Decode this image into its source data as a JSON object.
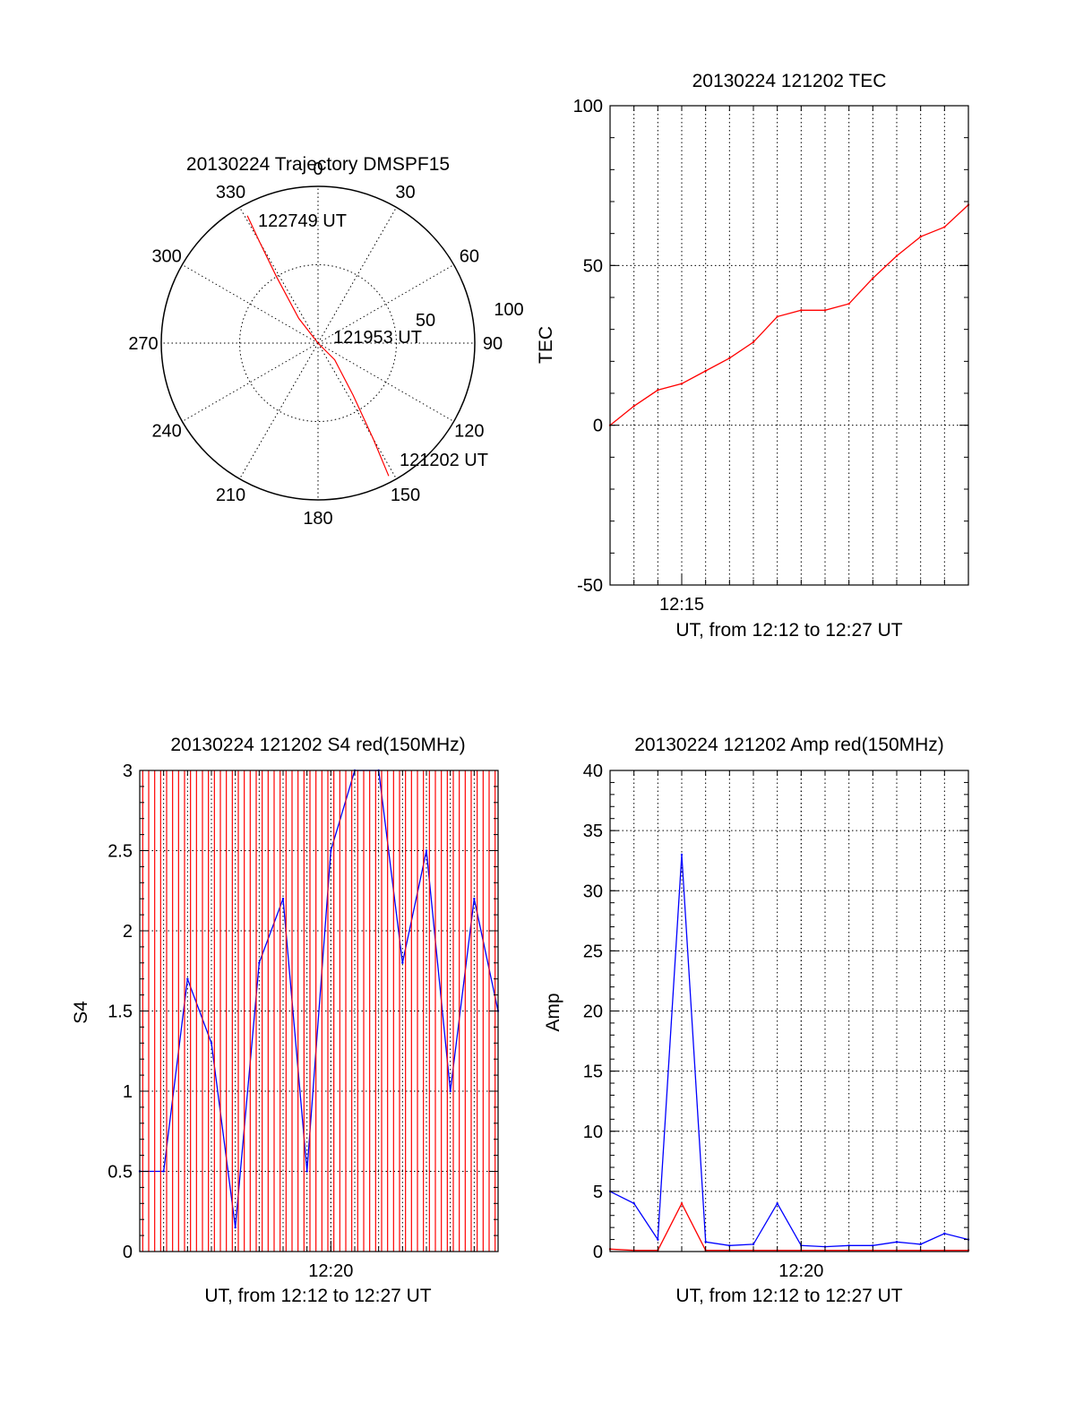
{
  "chart_data": [
    {
      "type": "polar",
      "title": "20130224 Trajectory DMSPF15",
      "angle_ticks": [
        "0",
        "30",
        "60",
        "90",
        "120",
        "150",
        "180",
        "210",
        "240",
        "270",
        "300",
        "330"
      ],
      "radial_ticks": [
        "50",
        "100"
      ],
      "rlim": [
        0,
        100
      ],
      "grid": true,
      "series": [
        {
          "color": "#ff0000",
          "points": [
            {
              "az": 152,
              "r": 96
            },
            {
              "az": 150,
              "r": 70
            },
            {
              "az": 146,
              "r": 40
            },
            {
              "az": 135,
              "r": 15
            },
            {
              "az": 0,
              "r": 0
            },
            {
              "az": 322,
              "r": 20
            },
            {
              "az": 328,
              "r": 50
            },
            {
              "az": 330,
              "r": 75
            },
            {
              "az": 331,
              "r": 93
            }
          ]
        }
      ],
      "annotations": [
        {
          "text": "122749 UT",
          "az": 331,
          "r": 93
        },
        {
          "text": "121953 UT",
          "az": 0,
          "r": 0
        },
        {
          "text": "121202 UT",
          "az": 152,
          "r": 96
        }
      ]
    },
    {
      "type": "line",
      "title": "20130224 121202 TEC",
      "xlabel": "UT, from 12:12 to 12:27 UT",
      "ylabel": "TEC",
      "xlim": [
        "12:12",
        "12:27"
      ],
      "xticks": [
        "12:15"
      ],
      "ylim": [
        -50,
        100
      ],
      "yticks": [
        -50,
        0,
        50,
        100
      ],
      "grid": true,
      "series": [
        {
          "color": "#ff0000",
          "x": [
            "12:12",
            "12:13",
            "12:14",
            "12:15",
            "12:16",
            "12:17",
            "12:18",
            "12:19",
            "12:20",
            "12:21",
            "12:22",
            "12:23",
            "12:24",
            "12:25",
            "12:26",
            "12:27"
          ],
          "values": [
            0,
            6,
            11,
            13,
            17,
            21,
            26,
            34,
            36,
            36,
            38,
            46,
            53,
            59,
            62,
            69
          ]
        }
      ]
    },
    {
      "type": "line",
      "title": "20130224 121202 S4 red(150MHz)",
      "xlabel": "UT, from 12:12 to 12:27 UT",
      "ylabel": "S4",
      "xlim": [
        "12:12",
        "12:27"
      ],
      "xticks": [
        "12:20"
      ],
      "ylim": [
        0,
        3
      ],
      "yticks": [
        0,
        0.5,
        1,
        1.5,
        2,
        2.5,
        3
      ],
      "grid": true,
      "series": [
        {
          "color": "#0000ff",
          "x": [
            "12:12",
            "12:13",
            "12:14",
            "12:15",
            "12:16",
            "12:17",
            "12:18",
            "12:19",
            "12:20",
            "12:21",
            "12:22",
            "12:23",
            "12:24",
            "12:25",
            "12:26",
            "12:27"
          ],
          "values": [
            0.5,
            0.5,
            1.7,
            1.3,
            0.15,
            1.8,
            2.2,
            0.5,
            2.5,
            3,
            3,
            1.8,
            2.5,
            1.0,
            2.2,
            1.5
          ]
        },
        {
          "color": "#ff0000",
          "x": [
            "12:12",
            "12:13",
            "12:14",
            "12:15",
            "12:16",
            "12:17",
            "12:18",
            "12:19",
            "12:20",
            "12:21",
            "12:22",
            "12:23",
            "12:24",
            "12:25",
            "12:26",
            "12:27"
          ],
          "values": [
            3,
            0,
            3,
            0,
            3,
            0,
            3,
            0,
            3,
            0,
            3,
            0,
            3,
            0,
            3,
            0
          ]
        }
      ]
    },
    {
      "type": "line",
      "title": "20130224 121202 Amp red(150MHz)",
      "xlabel": "UT, from 12:12 to 12:27 UT",
      "ylabel": "Amp",
      "xlim": [
        "12:12",
        "12:27"
      ],
      "xticks": [
        "12:20"
      ],
      "ylim": [
        0,
        40
      ],
      "yticks": [
        0,
        5,
        10,
        15,
        20,
        25,
        30,
        35,
        40
      ],
      "grid": true,
      "series": [
        {
          "color": "#0000ff",
          "x": [
            "12:12",
            "12:13",
            "12:14",
            "12:15",
            "12:16",
            "12:17",
            "12:18",
            "12:19",
            "12:20",
            "12:21",
            "12:22",
            "12:23",
            "12:24",
            "12:25",
            "12:26",
            "12:27"
          ],
          "values": [
            5,
            4,
            1,
            33,
            0.8,
            0.5,
            0.6,
            4,
            0.5,
            0.4,
            0.5,
            0.5,
            0.8,
            0.6,
            1.5,
            1
          ]
        },
        {
          "color": "#ff0000",
          "x": [
            "12:12",
            "12:13",
            "12:14",
            "12:15",
            "12:16",
            "12:17",
            "12:18",
            "12:19",
            "12:20",
            "12:21",
            "12:22",
            "12:23",
            "12:24",
            "12:25",
            "12:26",
            "12:27"
          ],
          "values": [
            0.2,
            0.1,
            0.1,
            4,
            0.1,
            0.1,
            0.1,
            0.1,
            0.1,
            0.1,
            0.1,
            0.1,
            0.1,
            0.1,
            0.1,
            0.1
          ]
        }
      ]
    }
  ]
}
